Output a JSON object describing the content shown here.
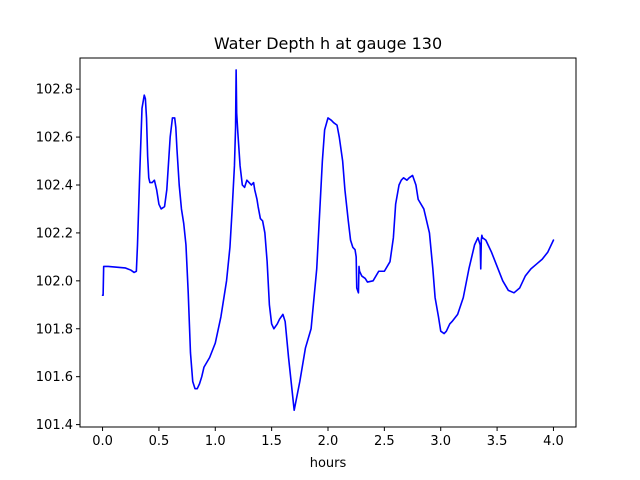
{
  "chart_data": {
    "type": "line",
    "title": "Water Depth h at gauge 130",
    "xlabel": "hours",
    "ylabel": "",
    "xlim": [
      -0.2,
      4.2
    ],
    "ylim": [
      101.39,
      102.93
    ],
    "xticks": [
      0.0,
      0.5,
      1.0,
      1.5,
      2.0,
      2.5,
      3.0,
      3.5,
      4.0
    ],
    "xtick_labels": [
      "0.0",
      "0.5",
      "1.0",
      "1.5",
      "2.0",
      "2.5",
      "3.0",
      "3.5",
      "4.0"
    ],
    "yticks": [
      101.4,
      101.6,
      101.8,
      102.0,
      102.2,
      102.4,
      102.6,
      102.8
    ],
    "ytick_labels": [
      "101.4",
      "101.6",
      "101.8",
      "102.0",
      "102.2",
      "102.4",
      "102.6",
      "102.8"
    ],
    "grid": false,
    "series": [
      {
        "color": "#0000ff",
        "x": [
          0.0,
          0.005,
          0.01,
          0.05,
          0.1,
          0.15,
          0.2,
          0.25,
          0.28,
          0.3,
          0.31,
          0.33,
          0.35,
          0.37,
          0.38,
          0.39,
          0.4,
          0.41,
          0.42,
          0.44,
          0.46,
          0.48,
          0.5,
          0.52,
          0.55,
          0.57,
          0.6,
          0.62,
          0.64,
          0.65,
          0.66,
          0.68,
          0.7,
          0.72,
          0.74,
          0.76,
          0.78,
          0.8,
          0.82,
          0.84,
          0.86,
          0.88,
          0.9,
          0.95,
          1.0,
          1.05,
          1.1,
          1.13,
          1.15,
          1.17,
          1.18,
          1.185,
          1.19,
          1.2,
          1.22,
          1.24,
          1.26,
          1.28,
          1.3,
          1.32,
          1.34,
          1.35,
          1.37,
          1.38,
          1.4,
          1.42,
          1.44,
          1.46,
          1.48,
          1.5,
          1.52,
          1.55,
          1.57,
          1.6,
          1.62,
          1.65,
          1.7,
          1.75,
          1.8,
          1.85,
          1.9,
          1.93,
          1.95,
          1.97,
          2.0,
          2.03,
          2.05,
          2.08,
          2.1,
          2.13,
          2.15,
          2.18,
          2.2,
          2.22,
          2.24,
          2.25,
          2.255,
          2.27,
          2.275,
          2.28,
          2.3,
          2.33,
          2.35,
          2.4,
          2.45,
          2.5,
          2.55,
          2.58,
          2.6,
          2.63,
          2.65,
          2.67,
          2.7,
          2.72,
          2.75,
          2.78,
          2.8,
          2.85,
          2.9,
          2.93,
          2.95,
          2.98,
          3.0,
          3.03,
          3.05,
          3.08,
          3.1,
          3.15,
          3.2,
          3.25,
          3.3,
          3.33,
          3.35,
          3.355,
          3.36,
          3.365,
          3.37,
          3.4,
          3.45,
          3.5,
          3.55,
          3.6,
          3.65,
          3.7,
          3.75,
          3.8,
          3.85,
          3.9,
          3.95,
          4.0
        ],
        "y": [
          101.94,
          101.94,
          102.06,
          102.06,
          102.058,
          102.056,
          102.054,
          102.045,
          102.035,
          102.04,
          102.15,
          102.45,
          102.72,
          102.775,
          102.76,
          102.68,
          102.52,
          102.43,
          102.41,
          102.41,
          102.42,
          102.38,
          102.32,
          102.3,
          102.31,
          102.38,
          102.6,
          102.68,
          102.68,
          102.64,
          102.55,
          102.4,
          102.3,
          102.24,
          102.15,
          101.95,
          101.7,
          101.58,
          101.55,
          101.55,
          101.57,
          101.6,
          101.64,
          101.68,
          101.74,
          101.85,
          102.0,
          102.14,
          102.3,
          102.48,
          102.64,
          102.88,
          102.7,
          102.62,
          102.48,
          102.4,
          102.39,
          102.42,
          102.41,
          102.4,
          102.41,
          102.38,
          102.34,
          102.31,
          102.26,
          102.25,
          102.2,
          102.08,
          101.9,
          101.82,
          101.8,
          101.82,
          101.84,
          101.86,
          101.83,
          101.68,
          101.46,
          101.58,
          101.72,
          101.8,
          102.05,
          102.32,
          102.5,
          102.63,
          102.68,
          102.67,
          102.66,
          102.65,
          102.6,
          102.5,
          102.38,
          102.25,
          102.17,
          102.14,
          102.13,
          102.1,
          101.97,
          101.95,
          102.06,
          102.04,
          102.02,
          102.01,
          101.995,
          102.0,
          102.04,
          102.04,
          102.08,
          102.18,
          102.32,
          102.4,
          102.42,
          102.43,
          102.42,
          102.43,
          102.44,
          102.4,
          102.34,
          102.3,
          102.2,
          102.05,
          101.93,
          101.85,
          101.79,
          101.78,
          101.79,
          101.82,
          101.83,
          101.86,
          101.93,
          102.05,
          102.15,
          102.18,
          102.15,
          102.05,
          102.17,
          102.19,
          102.18,
          102.17,
          102.12,
          102.06,
          102.0,
          101.96,
          101.95,
          101.97,
          102.02,
          102.05,
          102.07,
          102.09,
          102.12,
          102.17
        ]
      }
    ]
  }
}
